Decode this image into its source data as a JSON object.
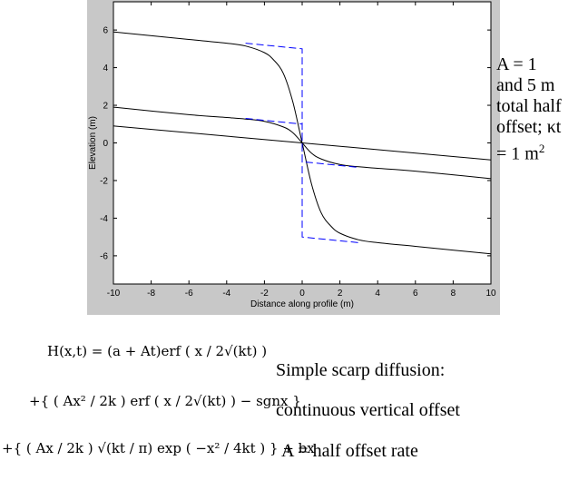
{
  "chart_data": {
    "type": "line",
    "xlabel": "Distance along profile (m)",
    "ylabel": "Elevation (m)",
    "xlim": [
      -10,
      10
    ],
    "ylim": [
      -7.5,
      7.5
    ],
    "x_ticks": [
      "-10",
      "-8",
      "-6",
      "-4",
      "-2",
      "0",
      "2",
      "4",
      "6",
      "8",
      "10"
    ],
    "y_ticks": [
      "6",
      "4",
      "2",
      "0",
      "-2",
      "-4",
      "-6"
    ],
    "grid": false,
    "series": [
      {
        "style": "solid",
        "color": "#000000",
        "x": [
          -10,
          0,
          10
        ],
        "y": [
          0.9,
          0,
          -0.9
        ]
      },
      {
        "style": "solid",
        "color": "#000000",
        "x": [
          -10,
          -6,
          -4,
          -3,
          -2,
          -1,
          -0.5,
          0,
          0.5,
          1,
          2,
          3,
          4,
          6,
          10
        ],
        "y": [
          1.9,
          1.5,
          1.35,
          1.27,
          1.15,
          0.85,
          0.55,
          0,
          -0.55,
          -0.85,
          -1.15,
          -1.27,
          -1.35,
          -1.5,
          -1.9
        ]
      },
      {
        "style": "solid",
        "color": "#000000",
        "x": [
          -10,
          -6,
          -4,
          -3,
          -2,
          -1.5,
          -1,
          -0.5,
          0,
          0.5,
          1,
          1.5,
          2,
          3,
          4,
          6,
          10
        ],
        "y": [
          5.9,
          5.5,
          5.3,
          5.15,
          4.8,
          4.4,
          3.7,
          2.2,
          0,
          -2.2,
          -3.7,
          -4.4,
          -4.8,
          -5.15,
          -5.3,
          -5.5,
          -5.9
        ]
      },
      {
        "style": "dashed",
        "color": "#0000ff",
        "x": [
          -3,
          0,
          0,
          0,
          0,
          3
        ],
        "y": [
          1.3,
          1,
          0,
          0,
          -1,
          -1.3
        ]
      },
      {
        "style": "dashed",
        "color": "#0000ff",
        "x": [
          -3,
          0,
          0,
          3
        ],
        "y": [
          5.3,
          5,
          -5,
          -5.3
        ]
      }
    ]
  },
  "side_note": {
    "lines": [
      "A = 1",
      "and 5 m",
      "total half",
      "offset; κt",
      "= 1 m"
    ],
    "superscript": "2"
  },
  "descriptions": {
    "line1": "Simple scarp diffusion:",
    "line2": "continuous vertical offset",
    "line3": "A = half offset rate"
  },
  "equation": {
    "line1": "H(x,t) = (a + At)erf ( x / 2√(kt) )",
    "line2": "+{ ( Ax² / 2k ) erf ( x / 2√(kt) ) − sgnx }",
    "line3": "+{ ( Ax / 2k ) √(kt / π)   exp ( −x² / 4kt ) } + bx"
  }
}
